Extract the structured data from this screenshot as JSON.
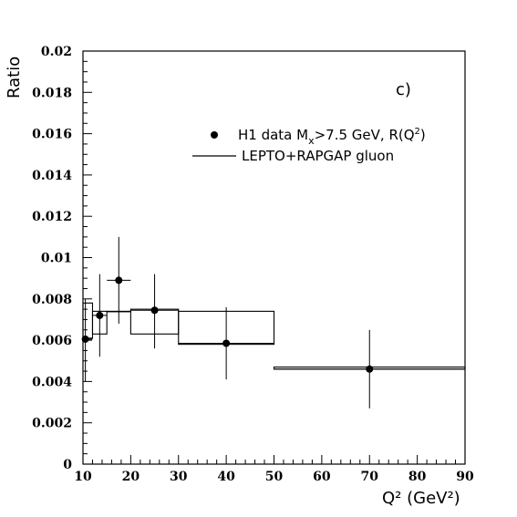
{
  "chart_data": {
    "type": "scatter",
    "panel_label": "c)",
    "xlabel": "Q² (GeV²)",
    "ylabel": "Ratio",
    "xlim": [
      10,
      90
    ],
    "ylim": [
      0,
      0.02
    ],
    "x_ticks": [
      "10",
      "20",
      "30",
      "40",
      "50",
      "60",
      "70",
      "80",
      "90"
    ],
    "y_ticks": [
      "0",
      "0.002",
      "0.004",
      "0.006",
      "0.008",
      "0.01",
      "0.012",
      "0.014",
      "0.016",
      "0.018",
      "0.02"
    ],
    "legend_position": "top-right",
    "series": [
      {
        "name": "H1 data M_x>7.5 GeV, R(Q²)",
        "type": "points_with_errors",
        "points": [
          {
            "x": 10.5,
            "y": 0.00605,
            "xlow": 10,
            "xhigh": 12,
            "ylow": 0.004,
            "yhigh": 0.008
          },
          {
            "x": 13.5,
            "y": 0.0072,
            "xlow": 12,
            "xhigh": 15,
            "ylow": 0.0052,
            "yhigh": 0.0092
          },
          {
            "x": 17.5,
            "y": 0.0089,
            "xlow": 15,
            "xhigh": 20,
            "ylow": 0.0068,
            "yhigh": 0.011
          },
          {
            "x": 25,
            "y": 0.00745,
            "xlow": 20,
            "xhigh": 30,
            "ylow": 0.0056,
            "yhigh": 0.0092
          },
          {
            "x": 40,
            "y": 0.00585,
            "xlow": 30,
            "xhigh": 50,
            "ylow": 0.0041,
            "yhigh": 0.0076
          },
          {
            "x": 70,
            "y": 0.0046,
            "xlow": 50,
            "xhigh": 90,
            "ylow": 0.0027,
            "yhigh": 0.0065
          }
        ]
      },
      {
        "name": "LEPTO+RAPGAP gluon",
        "type": "band",
        "bins": [
          {
            "xlow": 10,
            "xhigh": 12,
            "ylow": 0.0061,
            "yhigh": 0.0078
          },
          {
            "xlow": 12,
            "xhigh": 15,
            "ylow": 0.0063,
            "yhigh": 0.0074
          },
          {
            "xlow": 15,
            "xhigh": 20,
            "ylow": 0.0074,
            "yhigh": 0.0074
          },
          {
            "xlow": 20,
            "xhigh": 30,
            "ylow": 0.0063,
            "yhigh": 0.0075
          },
          {
            "xlow": 30,
            "xhigh": 50,
            "ylow": 0.0058,
            "yhigh": 0.0074
          },
          {
            "xlow": 50,
            "xhigh": 90,
            "ylow": 0.0046,
            "yhigh": 0.0047
          }
        ]
      }
    ],
    "legend": {
      "data_text": "H1 data M",
      "data_sub": "x",
      "data_text2": ">7.5 GeV, R(Q",
      "data_sup": "2",
      "data_text3": ")",
      "model_text": "LEPTO+RAPGAP gluon"
    }
  }
}
